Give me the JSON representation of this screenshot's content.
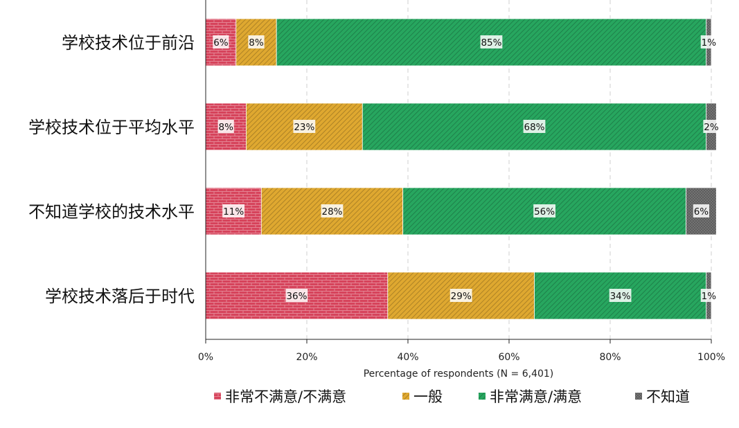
{
  "chart_data": {
    "type": "bar",
    "orientation": "horizontal",
    "stacked": true,
    "categories": [
      "学校技术位于前沿",
      "学校技术位于平均水平",
      "不知道学校的技术水平",
      "学校技术落后于时代"
    ],
    "series": [
      {
        "name": "非常不满意/不满意",
        "color": "#d6435b",
        "values": [
          6,
          8,
          11,
          36
        ]
      },
      {
        "name": "一般",
        "color": "#dfa830",
        "values": [
          8,
          23,
          28,
          29
        ]
      },
      {
        "name": "非常满意/满意",
        "color": "#27a65f",
        "values": [
          85,
          68,
          56,
          34
        ]
      },
      {
        "name": "不知道",
        "color": "#5e5e5e",
        "values": [
          1,
          2,
          6,
          1
        ]
      }
    ],
    "data_labels": [
      [
        "6%",
        "8%",
        "85%",
        "1%"
      ],
      [
        "8%",
        "23%",
        "68%",
        "2%"
      ],
      [
        "11%",
        "28%",
        "56%",
        "6%"
      ],
      [
        "36%",
        "29%",
        "34%",
        "1%"
      ]
    ],
    "xlabel": "Percentage of respondents (N = 6,401)",
    "xlim": [
      0,
      100
    ],
    "xticks": [
      0,
      20,
      40,
      60,
      80,
      100
    ],
    "xtick_labels": [
      "0%",
      "20%",
      "40%",
      "60%",
      "80%",
      "100%"
    ],
    "grid": "vertical dashed",
    "legend_position": "bottom"
  }
}
